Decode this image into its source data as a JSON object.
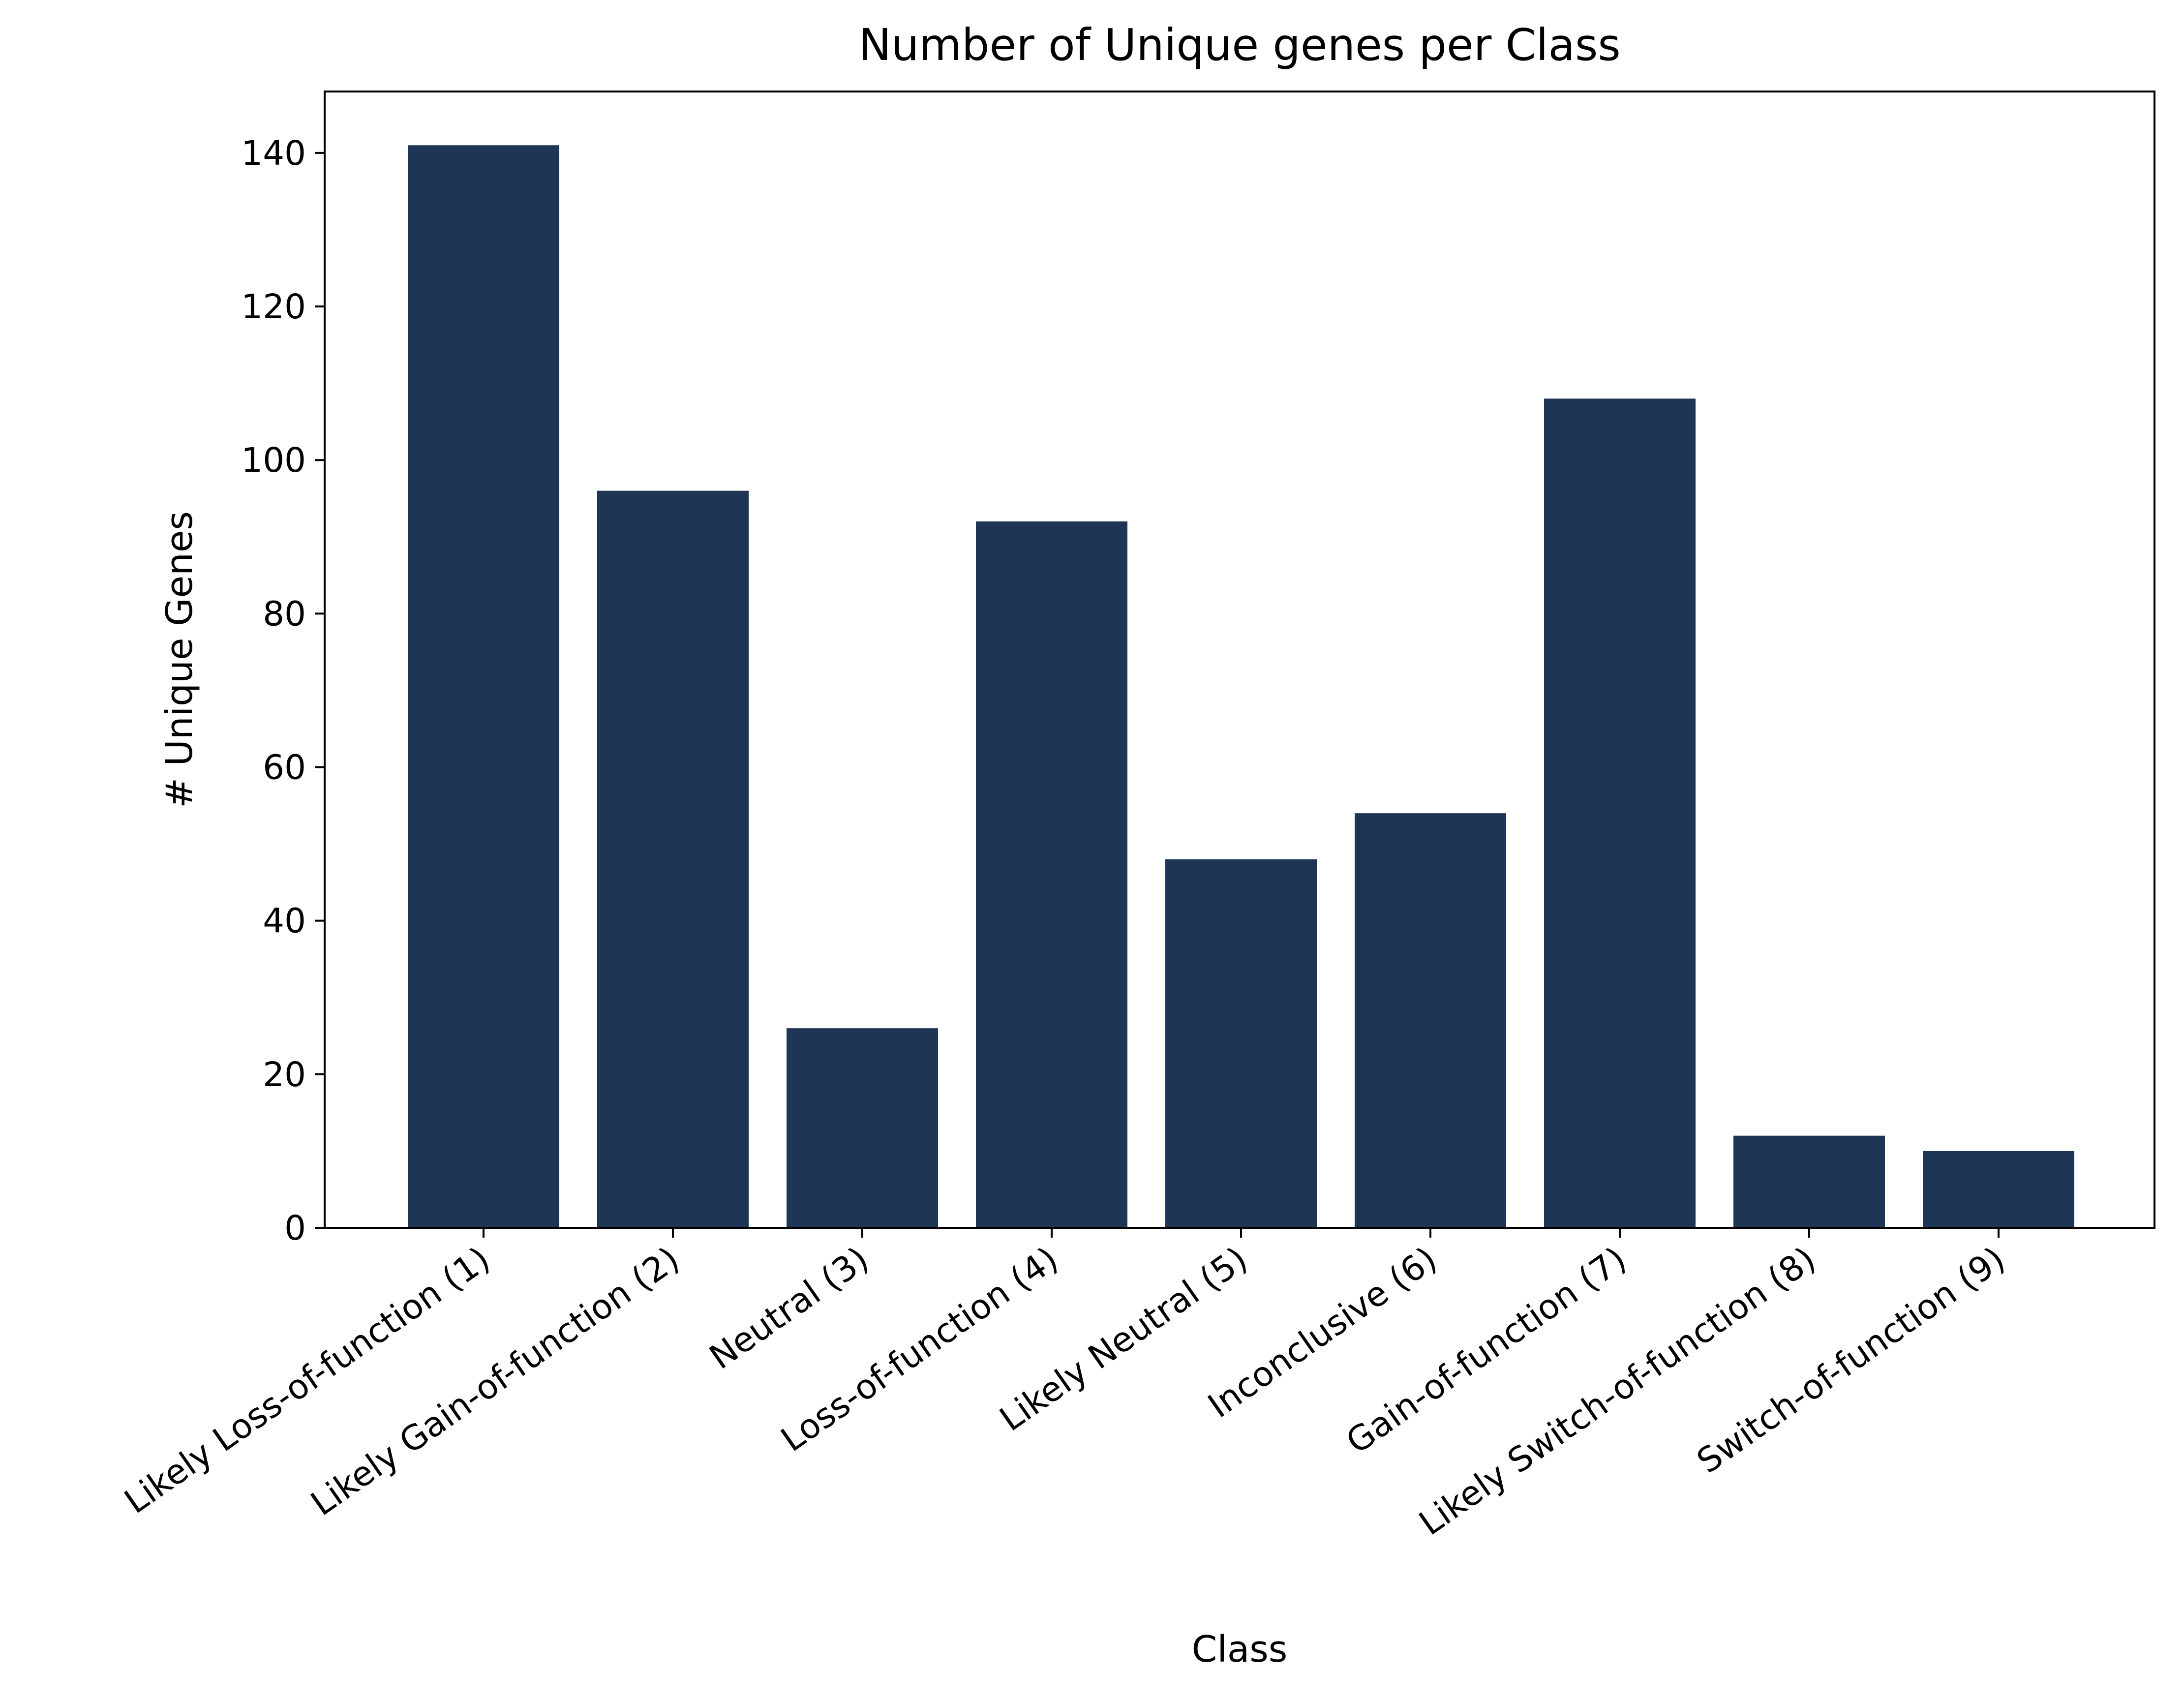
{
  "chart_data": {
    "type": "bar",
    "title": "Number of Unique genes per Class",
    "xlabel": "Class",
    "ylabel": "# Unique Genes",
    "categories": [
      "Likely Loss-of-function (1)",
      "Likely Gain-of-function (2)",
      "Neutral (3)",
      "Loss-of-function (4)",
      "Likely Neutral (5)",
      "Inconclusive (6)",
      "Gain-of-function (7)",
      "Likely Switch-of-function (8)",
      "Switch-of-function (9)"
    ],
    "values": [
      141,
      96,
      26,
      92,
      48,
      54,
      108,
      12,
      10
    ],
    "ylim": [
      0,
      148
    ],
    "yticks": [
      0,
      20,
      40,
      60,
      80,
      100,
      120,
      140
    ],
    "grid": false,
    "legend": "none",
    "bar_color": "#1f3555"
  }
}
